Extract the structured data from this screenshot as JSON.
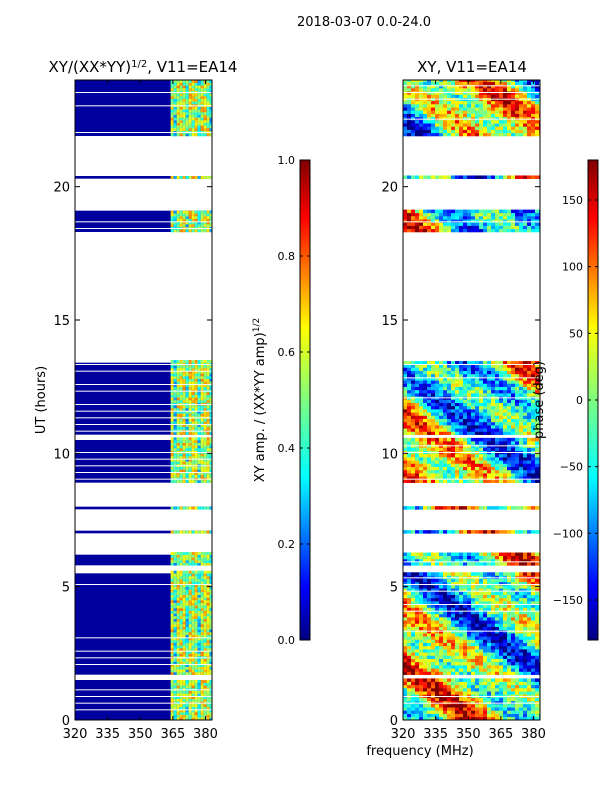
{
  "suptitle": "2018-03-07 0.0-24.0",
  "shared_xlabel": "frequency (MHz)",
  "chart_data": [
    {
      "type": "heatmap",
      "title_main": "XY/(XX*YY)",
      "title_exp": "1/2",
      "title_tail": ", V11=EA14",
      "ylabel": "UT (hours)",
      "xlim": [
        320,
        383
      ],
      "xticks": [
        "320",
        "335",
        "350",
        "365",
        "380"
      ],
      "xtick_values": [
        320,
        335,
        350,
        365,
        380
      ],
      "ylim": [
        0,
        24
      ],
      "yticks": [
        "0",
        "5",
        "10",
        "15",
        "20"
      ],
      "ytick_values": [
        0,
        5,
        10,
        15,
        20
      ],
      "colorbar": {
        "label_main": "XY amp. / (XX*YY amp)",
        "label_exp": "1/2",
        "ticks": [
          "0.0",
          "0.2",
          "0.4",
          "0.6",
          "0.8",
          "1.0"
        ],
        "tick_values": [
          0.0,
          0.2,
          0.4,
          0.6,
          0.8,
          1.0
        ],
        "range": [
          0.0,
          1.0
        ]
      },
      "data_bands_hours": [
        [
          0.0,
          1.5
        ],
        [
          1.7,
          5.5
        ],
        [
          5.8,
          6.2
        ],
        [
          7.0,
          7.1
        ],
        [
          7.9,
          8.0
        ],
        [
          8.9,
          10.5
        ],
        [
          10.7,
          13.4
        ],
        [
          18.3,
          19.1
        ],
        [
          20.3,
          20.4
        ],
        [
          21.9,
          24.0
        ]
      ],
      "active_band_mhz": [
        364,
        383
      ],
      "background_value": 0.0
    },
    {
      "type": "heatmap",
      "title_main": "XY, V11=EA14",
      "ylabel": "",
      "xlim": [
        320,
        383
      ],
      "xticks": [
        "320",
        "335",
        "350",
        "365",
        "380"
      ],
      "xtick_values": [
        320,
        335,
        350,
        365,
        380
      ],
      "ylim": [
        0,
        24
      ],
      "yticks": [
        "0",
        "5",
        "10",
        "15",
        "20"
      ],
      "ytick_values": [
        0,
        5,
        10,
        15,
        20
      ],
      "colorbar": {
        "label_main": "phase (deg)",
        "ticks": [
          "−150",
          "−100",
          "−50",
          "0",
          "50",
          "100",
          "150"
        ],
        "tick_values": [
          -150,
          -100,
          -50,
          0,
          50,
          100,
          150
        ],
        "range": [
          -180,
          180
        ]
      },
      "data_bands_hours": [
        [
          0.0,
          1.5
        ],
        [
          1.7,
          5.5
        ],
        [
          5.8,
          6.2
        ],
        [
          7.0,
          7.1
        ],
        [
          7.9,
          8.0
        ],
        [
          8.9,
          10.5
        ],
        [
          10.7,
          13.4
        ],
        [
          18.3,
          19.1
        ],
        [
          20.3,
          20.4
        ],
        [
          21.9,
          24.0
        ]
      ]
    }
  ]
}
